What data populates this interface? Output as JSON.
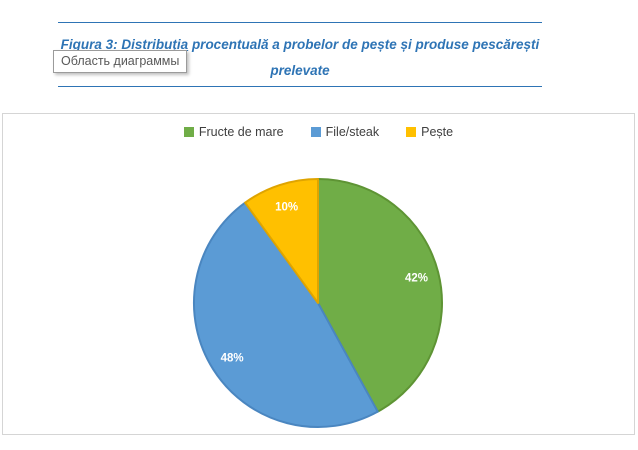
{
  "caption": {
    "line1_underlined": "Figura 3: Distribuția",
    "line1_rest": " procentuală a probelor de pește și produse pescărești",
    "line2": "prelevate"
  },
  "tooltip": {
    "text": "Область диаграммы"
  },
  "chart_data": {
    "type": "pie",
    "title": "Distribuția procentuală a probelor de pește și produse pescărești prelevate",
    "legend_position": "top",
    "start_angle_deg": 0,
    "direction": "clockwise",
    "series": [
      {
        "name": "Fructe de mare",
        "value": 42,
        "label": "42%",
        "color": "#70AD47",
        "border": "#5E9434"
      },
      {
        "name": "File/steak",
        "value": 48,
        "label": "48%",
        "color": "#5B9BD5",
        "border": "#4A86C0"
      },
      {
        "name": "Pește",
        "value": 10,
        "label": "10%",
        "color": "#FFC000",
        "border": "#DFA400"
      }
    ]
  },
  "icons": {
    "legend_marker": "filled-square"
  },
  "colors": {
    "accent_blue": "#2E74B5",
    "chart_border": "#D5D5D5",
    "tooltip_border": "#9B9B9B",
    "tooltip_text": "#595959",
    "legend_text": "#404040",
    "slice_label_text": "#FFFFFF"
  }
}
